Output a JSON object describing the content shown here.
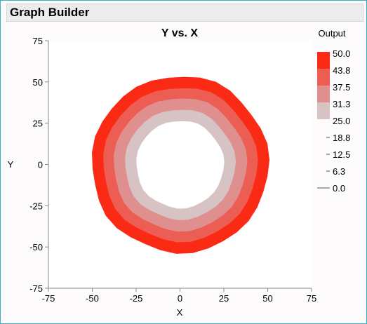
{
  "window": {
    "title": "Graph Builder"
  },
  "chart_data": {
    "type": "contour",
    "title": "Y vs. X",
    "xlabel": "X",
    "ylabel": "Y",
    "xlim": [
      -75,
      75
    ],
    "ylim": [
      -75,
      75
    ],
    "xticks": [
      "-75",
      "-50",
      "-25",
      "0",
      "25",
      "50",
      "75"
    ],
    "yticks": [
      "75",
      "50",
      "25",
      "0",
      "-25",
      "-50",
      "-75"
    ],
    "grid": false,
    "center": [
      0,
      0
    ],
    "bands": [
      {
        "range": [
          43.8,
          50.0
        ],
        "outer_radius": 50.5,
        "color": "#fb2a14"
      },
      {
        "range": [
          37.5,
          43.8
        ],
        "outer_radius": 44.0,
        "color": "#ec5e53"
      },
      {
        "range": [
          31.3,
          37.5
        ],
        "outer_radius": 38.0,
        "color": "#e08f8f"
      },
      {
        "range": [
          25.0,
          31.3
        ],
        "outer_radius": 31.5,
        "color": "#d7c3c4"
      },
      {
        "range": [
          0,
          25.0
        ],
        "outer_radius": 25.0,
        "color": "#ffffff"
      }
    ],
    "legend": {
      "title": "Output",
      "position": "right",
      "labels": [
        "50.0",
        "43.8",
        "37.5",
        "31.3",
        "25.0",
        "18.8",
        "12.5",
        "6.3",
        "0.0"
      ],
      "colors": [
        "#fb2a14",
        "#ec5e53",
        "#e08f8f",
        "#d7c3c4"
      ]
    }
  }
}
